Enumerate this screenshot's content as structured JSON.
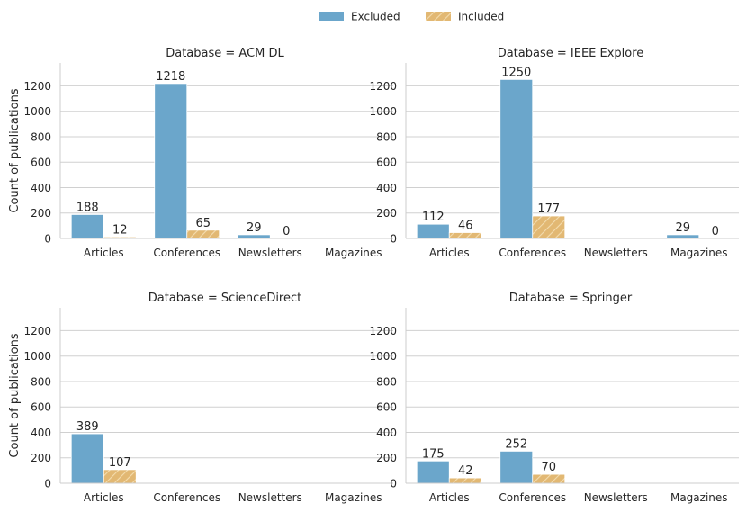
{
  "chart_data": {
    "type": "bar",
    "facet_title_prefix": "Database = ",
    "ylabel": "Count of publications",
    "ylim": [
      0,
      1380
    ],
    "yticks": [
      0,
      200,
      400,
      600,
      800,
      1000,
      1200
    ],
    "grid": true,
    "legend": {
      "placement": "top-center",
      "entries": [
        {
          "name": "Excluded",
          "color": "#6ba6cb"
        },
        {
          "name": "Included",
          "color": "#e2b873",
          "hatch": true
        }
      ]
    },
    "categories": [
      "Articles",
      "Conferences",
      "Newsletters",
      "Magazines"
    ],
    "panels": [
      {
        "database": "ACM DL",
        "series": [
          {
            "name": "Excluded",
            "values": [
              188,
              1218,
              29,
              null
            ]
          },
          {
            "name": "Included",
            "values": [
              12,
              65,
              0,
              null
            ]
          }
        ]
      },
      {
        "database": "IEEE Explore",
        "series": [
          {
            "name": "Excluded",
            "values": [
              112,
              1250,
              null,
              29
            ]
          },
          {
            "name": "Included",
            "values": [
              46,
              177,
              null,
              0
            ]
          }
        ]
      },
      {
        "database": "ScienceDirect",
        "series": [
          {
            "name": "Excluded",
            "values": [
              389,
              null,
              null,
              null
            ]
          },
          {
            "name": "Included",
            "values": [
              107,
              null,
              null,
              null
            ]
          }
        ]
      },
      {
        "database": "Springer",
        "series": [
          {
            "name": "Excluded",
            "values": [
              175,
              252,
              null,
              null
            ]
          },
          {
            "name": "Included",
            "values": [
              42,
              70,
              null,
              null
            ]
          }
        ]
      }
    ]
  }
}
